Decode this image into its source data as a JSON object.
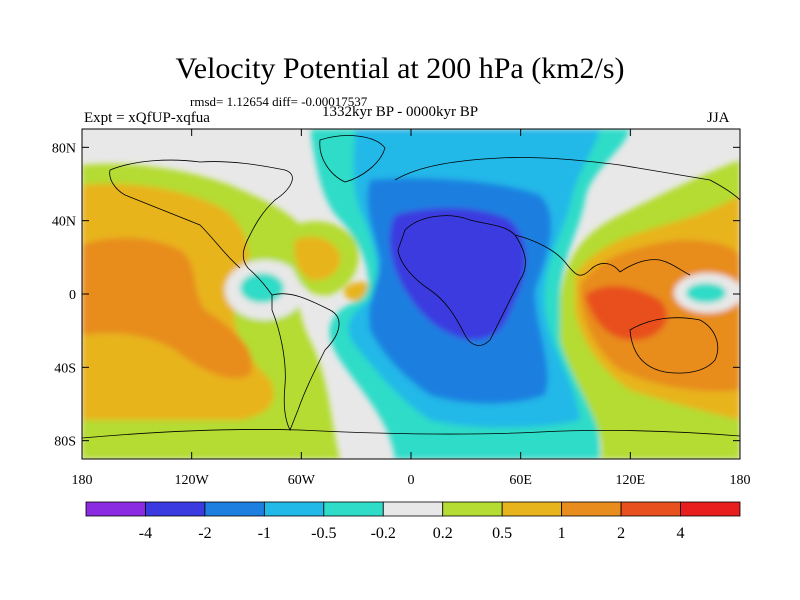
{
  "header": {
    "title": "Velocity Potential at 200 hPa (km2/s)",
    "stats": "rmsd= 1.12654  diff= -0.00017537",
    "experiment": "Expt = xQfUP-xqfua",
    "period": "1332kyr BP - 0000kyr BP",
    "season": "JJA"
  },
  "chart_data": {
    "type": "contour-map",
    "title": "Velocity Potential at 200 hPa (km2/s)",
    "units": "km2/s",
    "x_axis": {
      "ticks": [
        -180,
        -120,
        -60,
        0,
        60,
        120,
        180
      ],
      "labels": [
        "180",
        "120W",
        "60W",
        "0",
        "60E",
        "120E",
        "180"
      ],
      "range": [
        -180,
        180
      ]
    },
    "y_axis": {
      "ticks": [
        80,
        40,
        0,
        -40,
        -80
      ],
      "labels": [
        "80N",
        "40N",
        "0",
        "40S",
        "80S"
      ],
      "range": [
        -90,
        90
      ]
    },
    "colorbar": {
      "levels": [
        -4,
        -2,
        -1,
        -0.5,
        -0.2,
        0.2,
        0.5,
        1,
        2,
        4
      ],
      "labels": [
        "-4",
        "-2",
        "-1",
        "-0.5",
        "-0.2",
        "0.2",
        "0.5",
        "1",
        "2",
        "4"
      ],
      "colors": [
        "#8a2be2",
        "#3a3ae0",
        "#1e7fe0",
        "#22b8e8",
        "#2fdcc8",
        "#e8e8e8",
        "#b4dc32",
        "#e8b41e",
        "#e88c1e",
        "#e8501e",
        "#e81e1e"
      ]
    },
    "features": [
      {
        "name": "Africa-negative-center",
        "lon": 25,
        "lat": 5,
        "value": -2.5
      },
      {
        "name": "West-Pacific-positive-center",
        "lon": 110,
        "lat": -5,
        "value": 2.5
      },
      {
        "name": "East-Pacific-positive-center",
        "lon": -140,
        "lat": -10,
        "value": 1.5
      },
      {
        "name": "Central-Pacific-negative-pocket",
        "lon": 160,
        "lat": 0,
        "value": -0.5
      },
      {
        "name": "Central-America-negative-pocket",
        "lon": -80,
        "lat": 0,
        "value": -0.5
      }
    ]
  }
}
